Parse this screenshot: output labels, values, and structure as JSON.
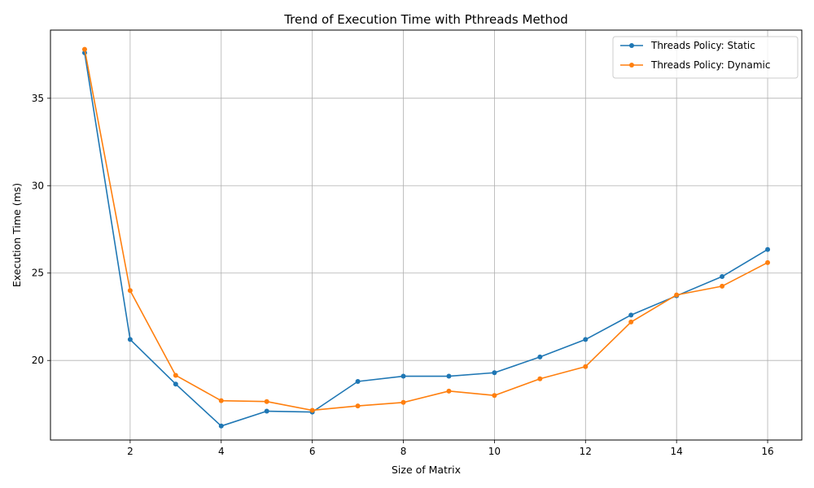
{
  "chart_data": {
    "type": "line",
    "title": "Trend of Execution Time with Pthreads Method",
    "xlabel": "Size of Matrix",
    "ylabel": "Execution Time (ms)",
    "xlim": [
      0.25,
      16.75
    ],
    "ylim": [
      15.45,
      38.9
    ],
    "xticks": [
      2,
      4,
      6,
      8,
      10,
      12,
      14,
      16
    ],
    "xtick_labels": [
      "2",
      "4",
      "6",
      "8",
      "10",
      "12",
      "14",
      "16"
    ],
    "yticks": [
      20,
      25,
      30,
      35
    ],
    "ytick_labels": [
      "20",
      "25",
      "30",
      "35"
    ],
    "grid": true,
    "legend_position": "top-right",
    "x": [
      1,
      2,
      3,
      4,
      5,
      6,
      7,
      8,
      9,
      10,
      11,
      12,
      13,
      14,
      15,
      16
    ],
    "series": [
      {
        "name": "Threads Policy: Static",
        "color": "#1f77b4",
        "values": [
          37.6,
          21.2,
          18.65,
          16.25,
          17.1,
          17.05,
          18.8,
          19.1,
          19.1,
          19.3,
          20.2,
          21.2,
          22.6,
          23.7,
          24.8,
          26.35
        ]
      },
      {
        "name": "Threads Policy: Dynamic",
        "color": "#ff7f0e",
        "values": [
          37.8,
          24.0,
          19.15,
          17.7,
          17.65,
          17.15,
          17.4,
          17.6,
          18.25,
          18.0,
          18.95,
          19.65,
          22.2,
          23.75,
          24.25,
          25.6
        ]
      }
    ]
  }
}
